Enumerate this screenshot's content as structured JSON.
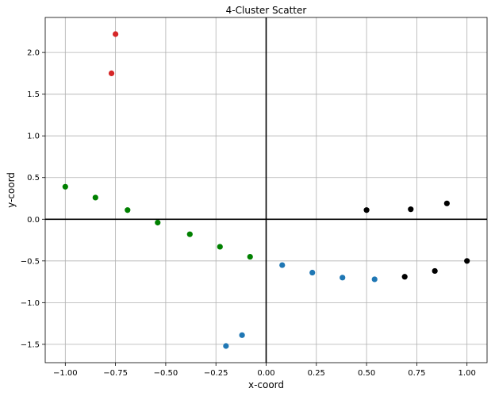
{
  "chart_data": {
    "type": "scatter",
    "title": "4-Cluster Scatter",
    "xlabel": "x-coord",
    "ylabel": "y-coord",
    "xlim": [
      -1.1,
      1.1
    ],
    "ylim": [
      -1.72,
      2.42
    ],
    "xticks": [
      -1.0,
      -0.75,
      -0.5,
      -0.25,
      0.0,
      0.25,
      0.5,
      0.75,
      1.0
    ],
    "xtick_labels": [
      "−1.00",
      "−0.75",
      "−0.50",
      "−0.25",
      "0.00",
      "0.25",
      "0.50",
      "0.75",
      "1.00"
    ],
    "yticks": [
      -1.5,
      -1.0,
      -0.5,
      0.0,
      0.5,
      1.0,
      1.5,
      2.0
    ],
    "ytick_labels": [
      "−1.5",
      "−1.0",
      "−0.5",
      "0.0",
      "0.5",
      "1.0",
      "1.5",
      "2.0"
    ],
    "grid": true,
    "zero_lines": true,
    "series": [
      {
        "color": "#1f77b4",
        "points": [
          {
            "x": -0.2,
            "y": -1.52
          },
          {
            "x": -0.12,
            "y": -1.39
          },
          {
            "x": 0.08,
            "y": -0.55
          },
          {
            "x": 0.23,
            "y": -0.64
          },
          {
            "x": 0.38,
            "y": -0.7
          },
          {
            "x": 0.54,
            "y": -0.72
          }
        ]
      },
      {
        "color": "#008000",
        "points": [
          {
            "x": -1.0,
            "y": 0.39
          },
          {
            "x": -0.85,
            "y": 0.26
          },
          {
            "x": -0.69,
            "y": 0.11
          },
          {
            "x": -0.54,
            "y": -0.04
          },
          {
            "x": -0.38,
            "y": -0.18
          },
          {
            "x": -0.23,
            "y": -0.33
          },
          {
            "x": -0.08,
            "y": -0.45
          }
        ]
      },
      {
        "color": "#d62728",
        "points": [
          {
            "x": -0.75,
            "y": 2.22
          },
          {
            "x": -0.77,
            "y": 1.75
          }
        ]
      },
      {
        "color": "#000000",
        "points": [
          {
            "x": 0.5,
            "y": 0.11
          },
          {
            "x": 0.72,
            "y": 0.12
          },
          {
            "x": 0.9,
            "y": 0.19
          },
          {
            "x": 1.0,
            "y": -0.5
          },
          {
            "x": 0.84,
            "y": -0.62
          },
          {
            "x": 0.69,
            "y": -0.69
          }
        ]
      }
    ]
  }
}
